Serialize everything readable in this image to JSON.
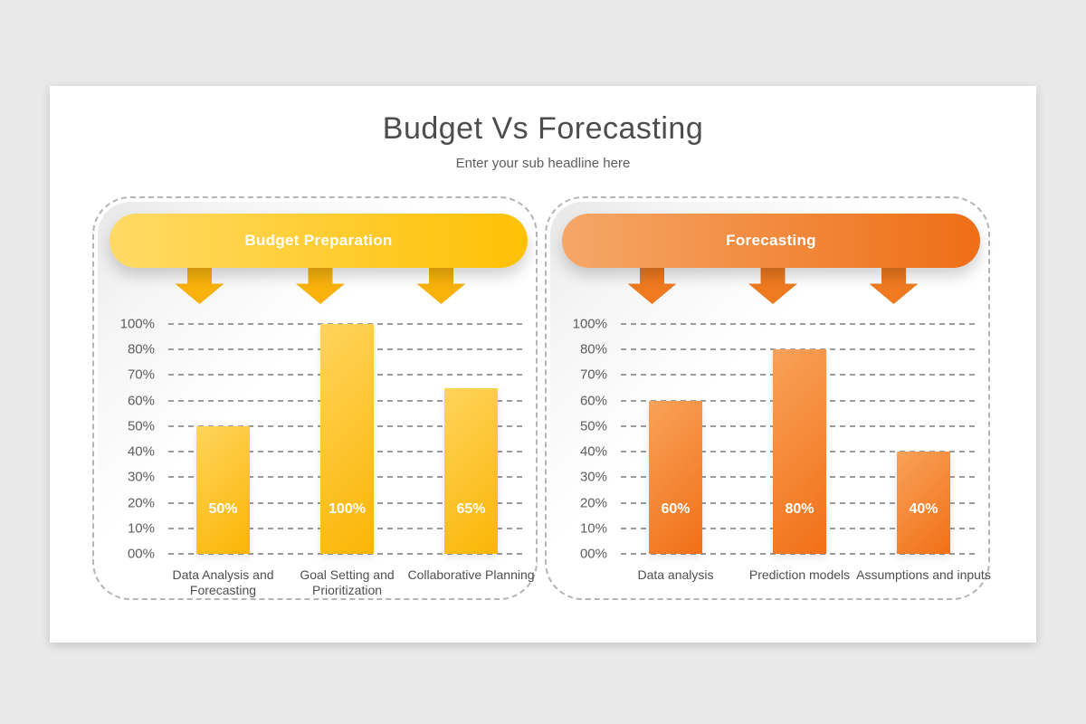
{
  "slide": {
    "title": "Budget Vs Forecasting",
    "subtitle": "Enter your sub headline here",
    "background_color": "#e9e9ea",
    "card_color": "#ffffff"
  },
  "chart_data": [
    {
      "type": "bar",
      "title": "Budget Preparation",
      "categories": [
        "Data Analysis and Forecasting",
        "Goal Setting and Prioritization",
        "Collaborative Planning"
      ],
      "values": [
        50,
        100,
        65
      ],
      "value_labels": [
        "50%",
        "100%",
        "65%"
      ],
      "y_tick_labels": [
        "100%",
        "80%",
        "70%",
        "60%",
        "50%",
        "40%",
        "30%",
        "20%",
        "10%",
        "00%"
      ],
      "y_tick_values": [
        100,
        80,
        70,
        60,
        50,
        40,
        30,
        20,
        10,
        0
      ],
      "ylim": [
        0,
        100
      ],
      "grid": "horizontal-dashed",
      "legend": "none",
      "colors": {
        "pill_from": "#ffda66",
        "pill_to": "#ffc104",
        "arrow": "#f8b20b",
        "bar_from": "#ffd45c",
        "bar_to": "#fbb505"
      }
    },
    {
      "type": "bar",
      "title": "Forecasting",
      "categories": [
        "Data analysis",
        "Prediction models",
        "Assumptions and inputs"
      ],
      "values": [
        60,
        80,
        40
      ],
      "value_labels": [
        "60%",
        "80%",
        "40%"
      ],
      "y_tick_labels": [
        "100%",
        "80%",
        "70%",
        "60%",
        "50%",
        "40%",
        "30%",
        "20%",
        "10%",
        "00%"
      ],
      "y_tick_values": [
        100,
        80,
        70,
        60,
        50,
        40,
        30,
        20,
        10,
        0
      ],
      "ylim": [
        0,
        100
      ],
      "grid": "horizontal-dashed",
      "legend": "none",
      "colors": {
        "pill_from": "#f5a768",
        "pill_to": "#ef6e16",
        "arrow": "#ef7a20",
        "bar_from": "#f8a259",
        "bar_to": "#f26f16"
      }
    }
  ]
}
